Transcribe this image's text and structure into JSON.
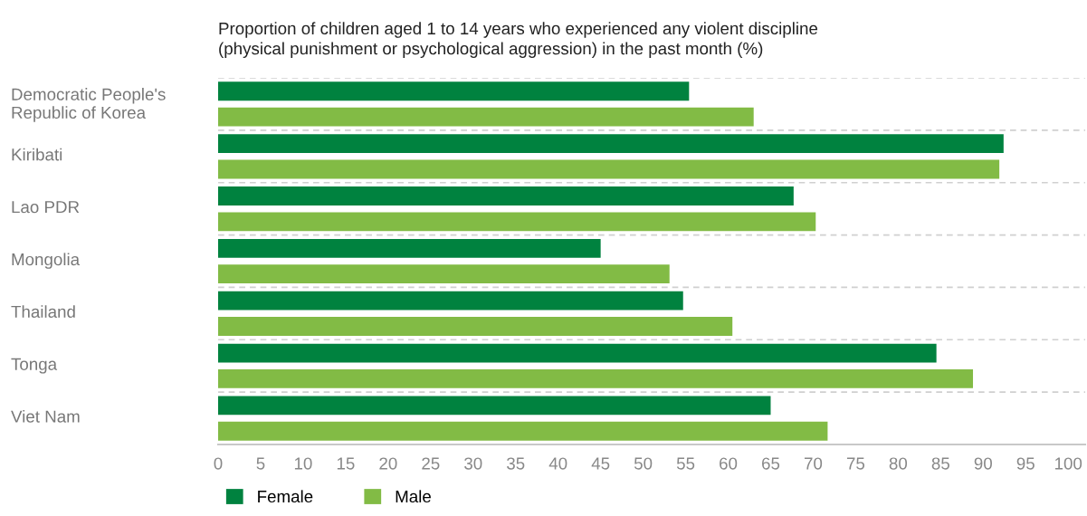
{
  "chart_data": {
    "type": "bar",
    "orientation": "horizontal",
    "title": "Proportion of children aged 1 to 14 years who experienced any violent discipline\n(physical punishment or psychological aggression) in the past month (%)",
    "categories": [
      "Democratic People's\nRepublic of Korea",
      "Kiribati",
      "Lao PDR",
      "Mongolia",
      "Thailand",
      "Tonga",
      "Viet Nam"
    ],
    "series": [
      {
        "name": "Female",
        "color": "#00823f",
        "values": [
          55.4,
          92.4,
          67.7,
          45.0,
          54.7,
          84.5,
          65.0
        ]
      },
      {
        "name": "Male",
        "color": "#82bb45",
        "values": [
          63.0,
          91.9,
          70.3,
          53.1,
          60.5,
          88.8,
          71.7
        ]
      }
    ],
    "xlim": [
      0,
      102
    ],
    "xticks": [
      0,
      5,
      10,
      15,
      20,
      25,
      30,
      35,
      40,
      45,
      50,
      55,
      60,
      65,
      70,
      75,
      80,
      85,
      90,
      95,
      100
    ],
    "grid": "y",
    "legend": "bottom left"
  }
}
